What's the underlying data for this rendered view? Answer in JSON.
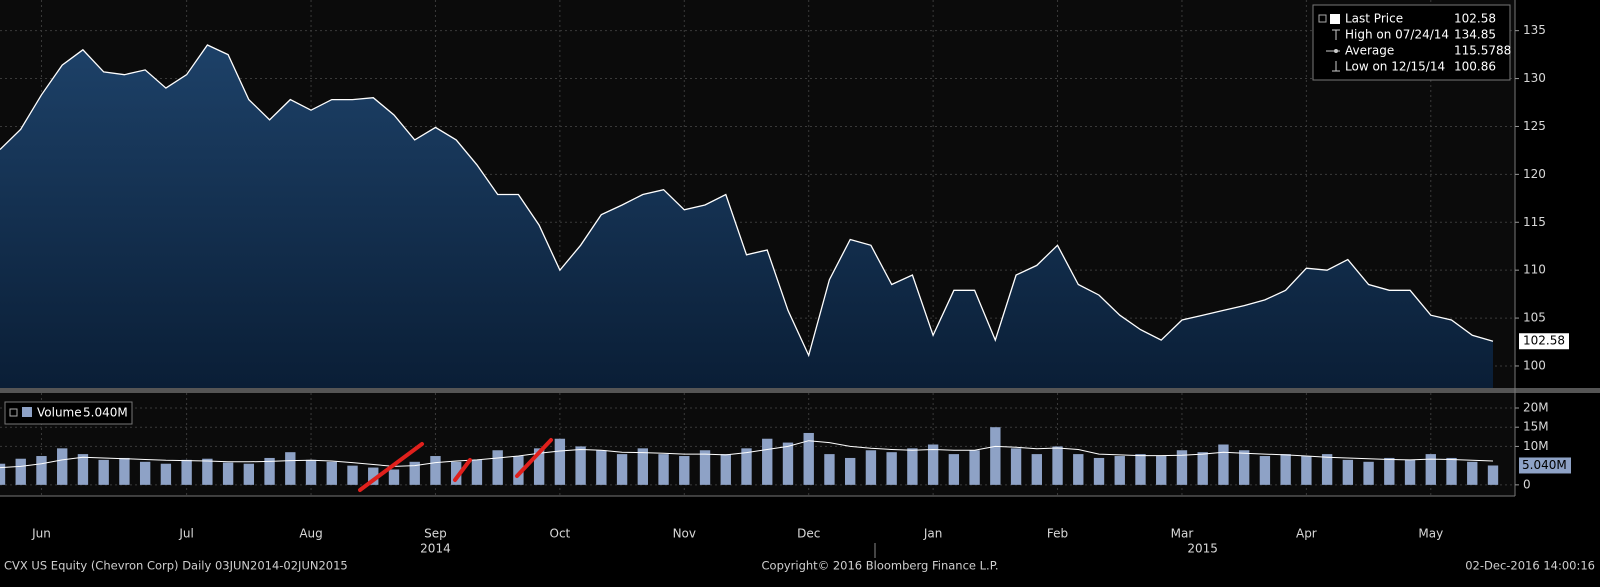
{
  "chart_data": [
    {
      "type": "area",
      "series": [
        {
          "name": "Last Price",
          "color": "#ffffff",
          "fill": "#12304f",
          "values": [
            122.6,
            124.7,
            128.3,
            131.4,
            133.0,
            130.7,
            130.4,
            130.9,
            129.0,
            130.4,
            133.5,
            132.5,
            127.8,
            125.7,
            127.8,
            126.7,
            127.8,
            127.8,
            128.0,
            126.2,
            123.6,
            124.9,
            123.6,
            121.0,
            117.9,
            117.9,
            114.7,
            110.0,
            112.6,
            115.8,
            116.8,
            117.9,
            118.4,
            116.3,
            116.8,
            117.9,
            111.6,
            112.1,
            105.8,
            101.1,
            109.0,
            113.2,
            112.6,
            108.5,
            109.5,
            103.2,
            107.9,
            107.9,
            102.7,
            109.5,
            110.5,
            112.6,
            108.5,
            107.4,
            105.3,
            103.8,
            102.7,
            104.8,
            105.3,
            105.8,
            106.3,
            106.9,
            107.9,
            110.2,
            110.0,
            111.1,
            108.5,
            107.9,
            107.9,
            105.3,
            104.8,
            103.2,
            102.58
          ]
        }
      ],
      "ylim": [
        97.7,
        138.2
      ],
      "yticks": [
        100,
        105,
        110,
        115,
        120,
        125,
        130,
        135
      ],
      "grid": true,
      "legend_position": "top-right",
      "legend": [
        {
          "label": "Last Price",
          "value": 102.58
        },
        {
          "label": "High on 07/24/14",
          "value": 134.85
        },
        {
          "label": "Average",
          "value": 115.5788
        },
        {
          "label": "Low on 12/15/14",
          "value": 100.86
        }
      ]
    },
    {
      "type": "bar",
      "categories": [
        null,
        null,
        "Jun",
        null,
        null,
        null,
        null,
        null,
        null,
        "Jul",
        null,
        null,
        null,
        null,
        null,
        "Aug",
        null,
        null,
        null,
        null,
        null,
        "Sep",
        null,
        null,
        null,
        null,
        null,
        "Oct",
        null,
        null,
        null,
        null,
        null,
        "Nov",
        null,
        null,
        null,
        null,
        null,
        "Dec",
        null,
        null,
        null,
        null,
        null,
        "Jan",
        null,
        null,
        null,
        null,
        null,
        "Feb",
        null,
        null,
        null,
        null,
        null,
        "Mar",
        null,
        null,
        null,
        null,
        null,
        "Apr",
        null,
        null,
        null,
        null,
        null,
        "May",
        null,
        null,
        null
      ],
      "year_labels": [
        null,
        null,
        null,
        null,
        null,
        null,
        null,
        null,
        null,
        null,
        null,
        null,
        null,
        null,
        null,
        null,
        null,
        null,
        null,
        null,
        null,
        "2014",
        null,
        null,
        null,
        null,
        null,
        null,
        null,
        null,
        null,
        null,
        null,
        null,
        null,
        null,
        null,
        null,
        null,
        null,
        null,
        null,
        null,
        null,
        null,
        null,
        null,
        null,
        null,
        null,
        null,
        null,
        null,
        null,
        null,
        null,
        null,
        null,
        "2015",
        null,
        null,
        null,
        null,
        null,
        null,
        null,
        null,
        null,
        null,
        null,
        null,
        null,
        null
      ],
      "series": [
        {
          "name": "Volume",
          "color": "#8ea2c6",
          "values": [
            5500000,
            6800000,
            7500000,
            9500000,
            8000000,
            6500000,
            7000000,
            6000000,
            5500000,
            6500000,
            6800000,
            5800000,
            5500000,
            7000000,
            8500000,
            6500000,
            6000000,
            5000000,
            4500000,
            4000000,
            6000000,
            7500000,
            6000000,
            6500000,
            9000000,
            7500000,
            9500000,
            12000000,
            10000000,
            9000000,
            8000000,
            9500000,
            8000000,
            7500000,
            9000000,
            8000000,
            9500000,
            12000000,
            11000000,
            13500000,
            8000000,
            7000000,
            9000000,
            8500000,
            9500000,
            10500000,
            8000000,
            9000000,
            15000000,
            9500000,
            8000000,
            10000000,
            8000000,
            7000000,
            7500000,
            8000000,
            7500000,
            9000000,
            8500000,
            10500000,
            9000000,
            7500000,
            8000000,
            7500000,
            8000000,
            6500000,
            6000000,
            7000000,
            6500000,
            8000000,
            7000000,
            6000000,
            5040000
          ]
        },
        {
          "type": "line",
          "color": "#ffffff",
          "values": [
            4500000,
            4800000,
            5500000,
            6500000,
            7200000,
            7000000,
            6800000,
            6600000,
            6400000,
            6300000,
            6200000,
            6000000,
            6000000,
            6100000,
            6300000,
            6400000,
            6200000,
            5800000,
            5300000,
            4800000,
            5000000,
            5800000,
            6200000,
            6500000,
            7000000,
            7500000,
            8200000,
            8800000,
            9200000,
            9000000,
            8500000,
            8400000,
            8200000,
            8000000,
            8000000,
            7800000,
            8400000,
            9200000,
            10000000,
            11500000,
            11000000,
            10000000,
            9500000,
            9200000,
            9000000,
            9200000,
            9000000,
            9000000,
            10000000,
            9800000,
            9400000,
            9600000,
            9200000,
            8000000,
            7800000,
            7600000,
            7600000,
            7700000,
            8000000,
            8500000,
            8200000,
            8000000,
            7800000,
            7500000,
            7200000,
            7000000,
            6800000,
            6600000,
            6500000,
            6700000,
            6600000,
            6400000,
            6200000
          ]
        }
      ],
      "legend_value": {
        "value": 5040000,
        "label": "5.040M"
      },
      "ylim": [
        -2900000,
        23900000
      ],
      "yticks": [
        0,
        {
          "value": 10000000,
          "label": "10M"
        },
        {
          "value": 15000000,
          "label": "15M"
        },
        {
          "value": 20000000,
          "label": "20M"
        }
      ],
      "grid": true
    }
  ],
  "footer": {
    "left": "CVX US Equity (Chevron Corp)  Daily 03JUN2014-02JUN2015",
    "center": "Copyright© 2016 Bloomberg Finance L.P.",
    "right": "02-Dec-2016 14:00:16"
  }
}
